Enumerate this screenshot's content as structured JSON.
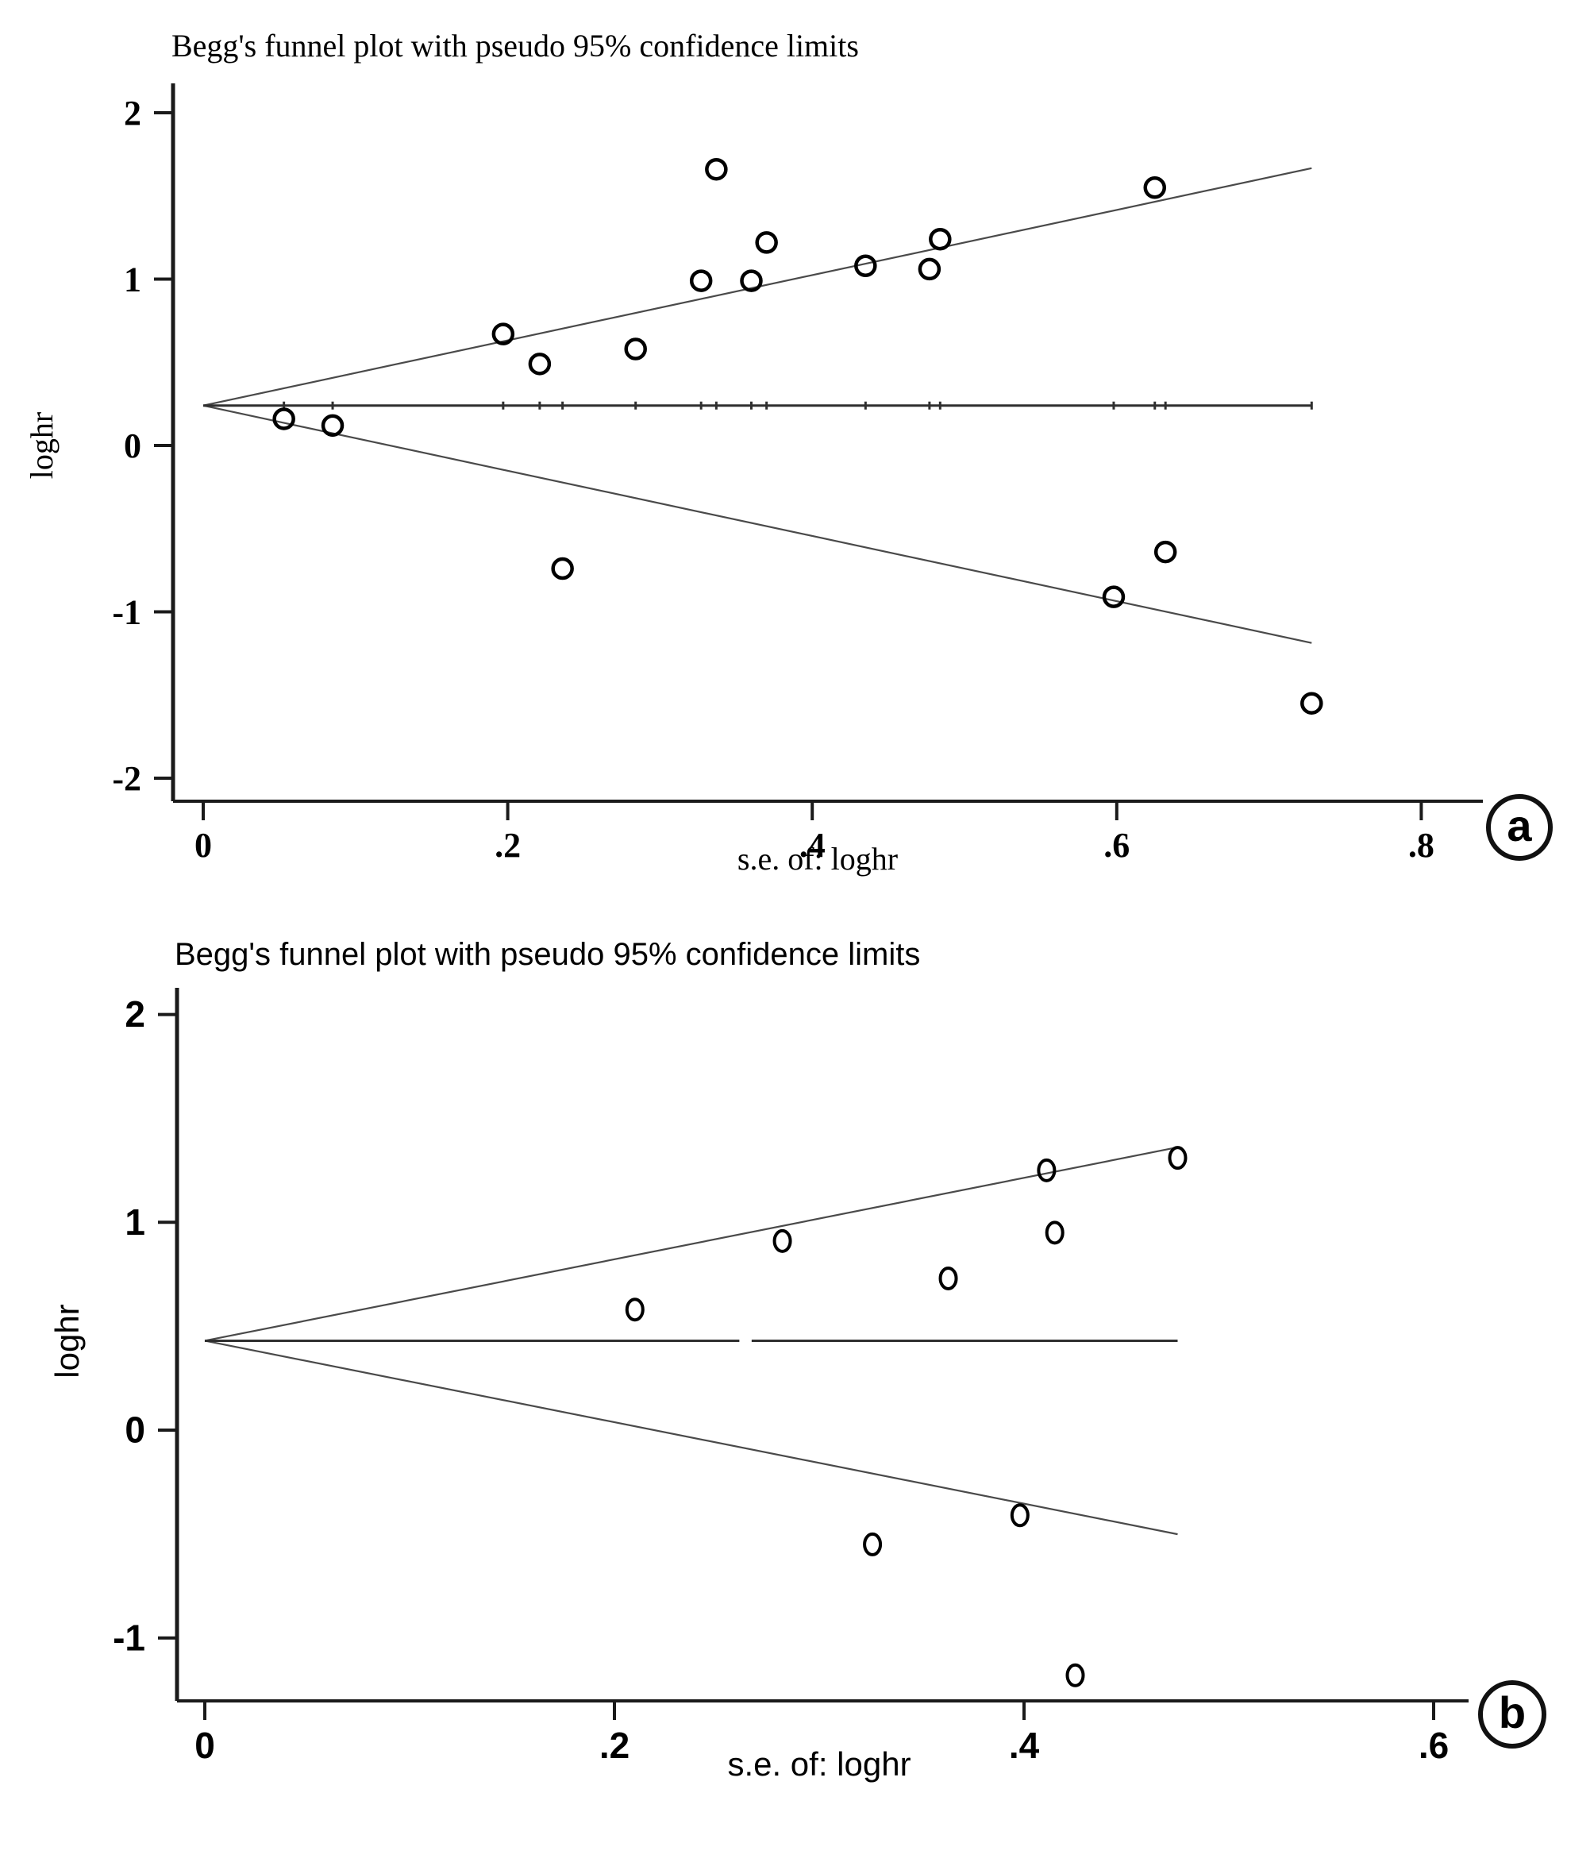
{
  "figure": {
    "background": "#ffffff",
    "description": "Two stacked Begg's funnel plots, panels a and b"
  },
  "colors": {
    "axis": "#1a1a1a",
    "funnel_line": "#4a4a4a",
    "center_line": "#2f2f2f",
    "marker_stroke": "#000000",
    "text": "#000000",
    "background": "#ffffff"
  },
  "chart_data": [
    {
      "id": "a",
      "type": "scatter",
      "panel_label": "a",
      "title": "Begg's funnel plot with pseudo 95% confidence limits",
      "xlabel": "s.e. of: loghr",
      "ylabel": "loghr",
      "x_ticks": [
        0,
        0.2,
        0.4,
        0.6,
        0.8
      ],
      "x_tick_labels": [
        "0",
        ".2",
        ".4",
        ".6",
        ".8"
      ],
      "y_ticks": [
        2,
        1,
        0,
        -1,
        -2
      ],
      "y_tick_labels": [
        "2",
        "1",
        "0",
        "-1",
        "-2"
      ],
      "xlim": [
        0,
        0.84
      ],
      "ylim": [
        -2.14,
        2.18
      ],
      "grid": false,
      "legend": false,
      "center_line_y": 0.24,
      "ci_multiplier": 1.96,
      "funnel_max_se": 0.728,
      "center_line_gap_x": null,
      "study_ticks_on_center_line": true,
      "points_xy": [
        [
          0.053,
          0.16
        ],
        [
          0.085,
          0.12
        ],
        [
          0.197,
          0.67
        ],
        [
          0.221,
          0.49
        ],
        [
          0.236,
          -0.74
        ],
        [
          0.284,
          0.58
        ],
        [
          0.327,
          0.99
        ],
        [
          0.337,
          1.66
        ],
        [
          0.36,
          0.99
        ],
        [
          0.37,
          1.22
        ],
        [
          0.435,
          1.08
        ],
        [
          0.477,
          1.06
        ],
        [
          0.484,
          1.24
        ],
        [
          0.598,
          -0.91
        ],
        [
          0.625,
          1.55
        ],
        [
          0.632,
          -0.64
        ],
        [
          0.728,
          -1.55
        ]
      ]
    },
    {
      "id": "b",
      "type": "scatter",
      "panel_label": "b",
      "title": "Begg's funnel plot with pseudo 95% confidence limits",
      "xlabel": "s.e. of: loghr",
      "ylabel": "loghr",
      "x_ticks": [
        0,
        0.2,
        0.4,
        0.6
      ],
      "x_tick_labels": [
        "0",
        ".2",
        ".4",
        ".6"
      ],
      "y_ticks": [
        2,
        1,
        0,
        -1
      ],
      "y_tick_labels": [
        "2",
        "1",
        "0",
        "-1"
      ],
      "xlim": [
        0,
        0.617
      ],
      "ylim": [
        -1.3,
        2.13
      ],
      "grid": false,
      "legend": false,
      "center_line_y": 0.43,
      "ci_multiplier": 1.96,
      "funnel_max_se": 0.475,
      "center_line_gap_x": 0.264,
      "study_ticks_on_center_line": false,
      "points_xy": [
        [
          0.21,
          0.58
        ],
        [
          0.282,
          0.91
        ],
        [
          0.326,
          -0.55
        ],
        [
          0.363,
          0.73
        ],
        [
          0.398,
          -0.41
        ],
        [
          0.411,
          1.25
        ],
        [
          0.415,
          0.95
        ],
        [
          0.425,
          -1.18
        ],
        [
          0.475,
          1.31
        ]
      ]
    }
  ]
}
